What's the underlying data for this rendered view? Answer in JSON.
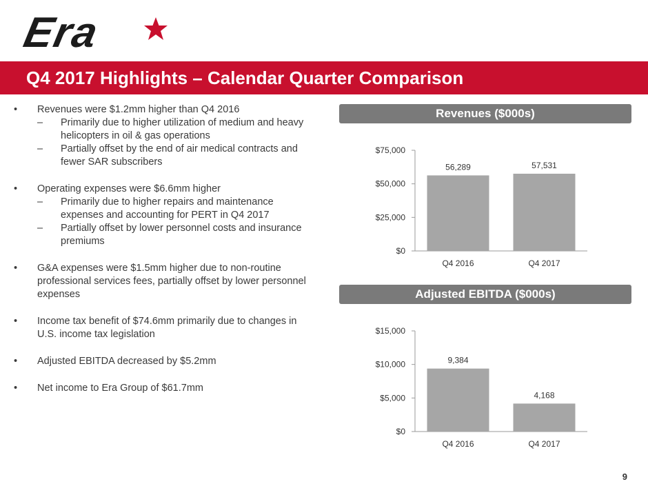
{
  "header": {
    "logo_text": "Era",
    "title": "Q4 2017 Highlights – Calendar Quarter Comparison"
  },
  "bullets": [
    {
      "text": "Revenues were $1.2mm higher than Q4 2016",
      "subs": [
        "Primarily due to higher utilization of medium and heavy helicopters in oil & gas operations",
        "Partially offset by the end of air medical contracts and fewer SAR subscribers"
      ]
    },
    {
      "text": "Operating expenses were $6.6mm higher",
      "subs": [
        "Primarily due to higher repairs and maintenance expenses and accounting for PERT in Q4 2017",
        "Partially offset by lower personnel costs and insurance premiums"
      ]
    },
    {
      "text": "G&A expenses were $1.5mm higher due to non-routine professional services fees, partially offset by lower personnel expenses",
      "subs": []
    },
    {
      "text": "Income tax benefit of $74.6mm primarily due to changes in U.S. income tax legislation",
      "subs": []
    },
    {
      "text": "Adjusted EBITDA decreased by $5.2mm",
      "subs": []
    },
    {
      "text": "Net income to Era Group of $61.7mm",
      "subs": []
    }
  ],
  "colors": {
    "brand_red": "#c8102e",
    "panel_gray": "#7a7a7a",
    "bar_gray": "#a6a6a6"
  },
  "chart_data": [
    {
      "type": "bar",
      "title": "Revenues ($000s)",
      "categories": [
        "Q4 2016",
        "Q4 2017"
      ],
      "values": [
        56289,
        57531
      ],
      "value_labels": [
        "56,289",
        "57,531"
      ],
      "yticks": [
        0,
        25000,
        50000,
        75000
      ],
      "ytick_labels": [
        "$0",
        "$25,000",
        "$50,000",
        "$75,000"
      ],
      "ylim": [
        0,
        75000
      ],
      "xlabel": "",
      "ylabel": ""
    },
    {
      "type": "bar",
      "title": "Adjusted EBITDA ($000s)",
      "categories": [
        "Q4 2016",
        "Q4 2017"
      ],
      "values": [
        9384,
        4168
      ],
      "value_labels": [
        "9,384",
        "4,168"
      ],
      "yticks": [
        0,
        5000,
        10000,
        15000
      ],
      "ytick_labels": [
        "$0",
        "$5,000",
        "$10,000",
        "$15,000"
      ],
      "ylim": [
        0,
        15000
      ],
      "xlabel": "",
      "ylabel": ""
    }
  ],
  "footer": {
    "page_number": "9"
  }
}
